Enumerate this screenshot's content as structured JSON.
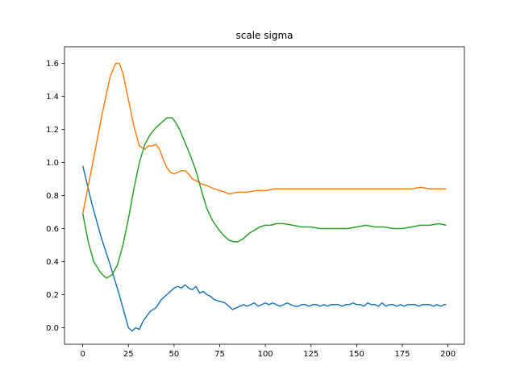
{
  "chart_data": {
    "type": "line",
    "title": "scale sigma",
    "xlabel": "",
    "ylabel": "",
    "xlim": [
      -10,
      209
    ],
    "ylim": [
      -0.1,
      1.7
    ],
    "xticks": [
      0,
      25,
      50,
      75,
      100,
      125,
      150,
      175,
      200
    ],
    "yticks": [
      0.0,
      0.2,
      0.4,
      0.6,
      0.8,
      1.0,
      1.2,
      1.4,
      1.6
    ],
    "grid": false,
    "legend": "none",
    "series": [
      {
        "color": "#1f77b4",
        "x": [
          0,
          5,
          10,
          15,
          20,
          23,
          25,
          27,
          29,
          31,
          33,
          35,
          37,
          40,
          43,
          46,
          48,
          50,
          52,
          54,
          56,
          58,
          60,
          62,
          64,
          66,
          68,
          70,
          72,
          75,
          78,
          80,
          82,
          84,
          86,
          88,
          90,
          92,
          94,
          96,
          98,
          100,
          102,
          104,
          106,
          108,
          110,
          112,
          114,
          116,
          118,
          120,
          122,
          124,
          126,
          128,
          130,
          132,
          134,
          136,
          138,
          140,
          142,
          144,
          146,
          148,
          150,
          152,
          154,
          156,
          158,
          160,
          162,
          164,
          166,
          168,
          170,
          172,
          174,
          176,
          178,
          180,
          182,
          184,
          186,
          188,
          190,
          192,
          194,
          196,
          198,
          199
        ],
        "y": [
          0.98,
          0.75,
          0.55,
          0.38,
          0.2,
          0.08,
          0.0,
          -0.02,
          0.0,
          -0.01,
          0.04,
          0.07,
          0.1,
          0.12,
          0.17,
          0.2,
          0.22,
          0.24,
          0.25,
          0.24,
          0.26,
          0.24,
          0.23,
          0.25,
          0.21,
          0.22,
          0.2,
          0.19,
          0.17,
          0.16,
          0.15,
          0.13,
          0.11,
          0.12,
          0.13,
          0.14,
          0.13,
          0.14,
          0.15,
          0.13,
          0.14,
          0.15,
          0.14,
          0.15,
          0.14,
          0.13,
          0.14,
          0.15,
          0.14,
          0.13,
          0.13,
          0.14,
          0.14,
          0.13,
          0.14,
          0.14,
          0.13,
          0.14,
          0.13,
          0.14,
          0.14,
          0.14,
          0.13,
          0.14,
          0.14,
          0.15,
          0.14,
          0.14,
          0.13,
          0.15,
          0.14,
          0.14,
          0.13,
          0.15,
          0.13,
          0.14,
          0.14,
          0.13,
          0.14,
          0.13,
          0.14,
          0.14,
          0.14,
          0.13,
          0.14,
          0.14,
          0.14,
          0.13,
          0.14,
          0.13,
          0.14,
          0.14
        ]
      },
      {
        "color": "#ff7f0e",
        "x": [
          0,
          5,
          10,
          15,
          18,
          20,
          22,
          25,
          28,
          31,
          34,
          36,
          38,
          40,
          42,
          44,
          46,
          48,
          50,
          52,
          54,
          56,
          58,
          60,
          62,
          65,
          68,
          70,
          72,
          75,
          78,
          80,
          85,
          90,
          95,
          100,
          105,
          110,
          115,
          120,
          125,
          130,
          135,
          140,
          145,
          150,
          155,
          160,
          165,
          170,
          175,
          180,
          185,
          190,
          195,
          199
        ],
        "y": [
          0.69,
          0.97,
          1.26,
          1.52,
          1.6,
          1.6,
          1.54,
          1.38,
          1.22,
          1.1,
          1.08,
          1.1,
          1.1,
          1.11,
          1.08,
          1.02,
          0.97,
          0.94,
          0.93,
          0.94,
          0.95,
          0.95,
          0.93,
          0.9,
          0.89,
          0.87,
          0.86,
          0.85,
          0.84,
          0.83,
          0.82,
          0.81,
          0.82,
          0.82,
          0.83,
          0.83,
          0.84,
          0.84,
          0.84,
          0.84,
          0.84,
          0.84,
          0.84,
          0.84,
          0.84,
          0.84,
          0.84,
          0.84,
          0.84,
          0.84,
          0.84,
          0.84,
          0.85,
          0.84,
          0.84,
          0.84
        ]
      },
      {
        "color": "#2ca02c",
        "x": [
          0,
          3,
          6,
          10,
          13,
          16,
          19,
          22,
          25,
          28,
          31,
          34,
          37,
          40,
          43,
          46,
          49,
          51,
          53,
          56,
          59,
          62,
          65,
          68,
          71,
          74,
          77,
          80,
          83,
          85,
          88,
          91,
          94,
          97,
          100,
          103,
          106,
          110,
          115,
          120,
          125,
          130,
          135,
          140,
          145,
          150,
          155,
          160,
          165,
          170,
          175,
          180,
          185,
          190,
          195,
          199
        ],
        "y": [
          0.69,
          0.52,
          0.4,
          0.33,
          0.3,
          0.32,
          0.38,
          0.5,
          0.66,
          0.84,
          1.0,
          1.11,
          1.17,
          1.21,
          1.24,
          1.27,
          1.27,
          1.24,
          1.2,
          1.12,
          1.04,
          0.95,
          0.83,
          0.72,
          0.65,
          0.6,
          0.56,
          0.53,
          0.52,
          0.52,
          0.54,
          0.57,
          0.59,
          0.61,
          0.62,
          0.62,
          0.63,
          0.63,
          0.62,
          0.61,
          0.61,
          0.6,
          0.6,
          0.6,
          0.6,
          0.61,
          0.62,
          0.61,
          0.61,
          0.6,
          0.6,
          0.61,
          0.62,
          0.62,
          0.63,
          0.62
        ]
      }
    ]
  }
}
